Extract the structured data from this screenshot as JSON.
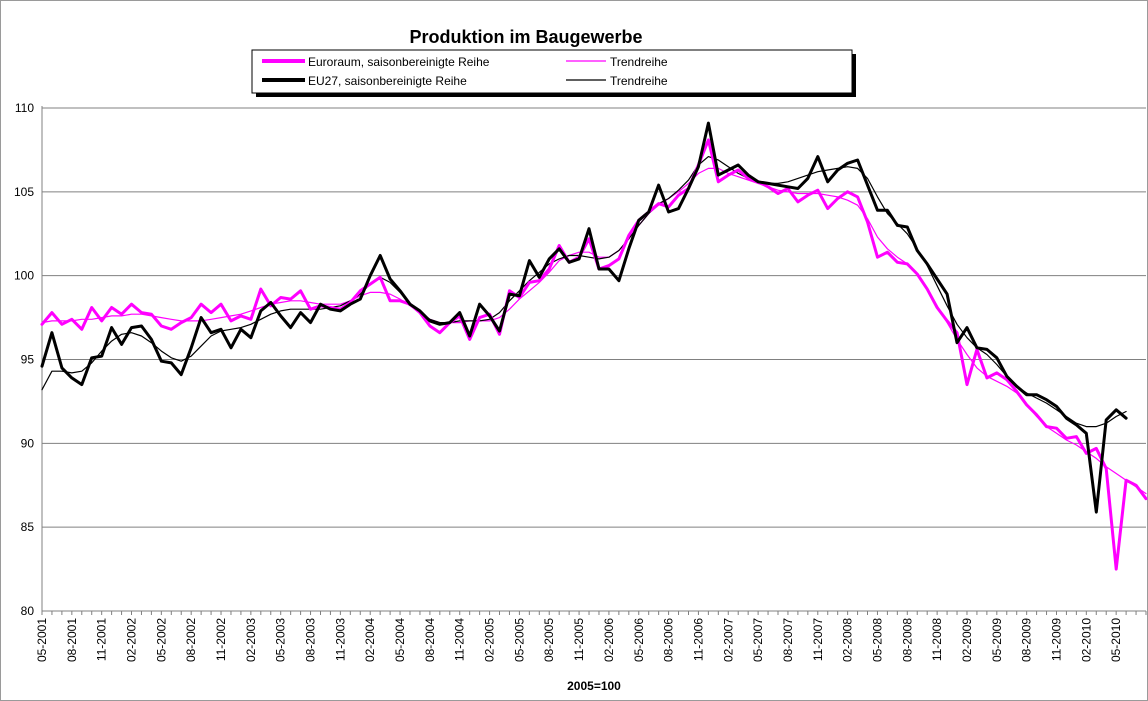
{
  "chart_data": {
    "type": "line",
    "title": "Produktion im Baugewerbe",
    "note": "2005=100",
    "ylim": [
      80,
      110
    ],
    "yticks": [
      80,
      85,
      90,
      95,
      100,
      105,
      110
    ],
    "x_start": "05-2001",
    "x_end": "05-2010",
    "xtick_labels": [
      "05-2001",
      "08-2001",
      "11-2001",
      "02-2002",
      "05-2002",
      "08-2002",
      "11-2002",
      "02-2003",
      "05-2003",
      "08-2003",
      "11-2003",
      "02-2004",
      "05-2004",
      "08-2004",
      "11-2004",
      "02-2005",
      "05-2005",
      "08-2005",
      "11-2005",
      "02-2006",
      "05-2006",
      "08-2006",
      "11-2006",
      "02-2007",
      "05-2007",
      "08-2007",
      "11-2007",
      "02-2008",
      "05-2008",
      "08-2008",
      "11-2008",
      "02-2009",
      "05-2009",
      "08-2009",
      "11-2009",
      "02-2010",
      "05-2010"
    ],
    "grid": "horizontal",
    "legend_position": "top-center",
    "colors": {
      "euro": "#ff00ff",
      "eu27": "#000000"
    },
    "series": [
      {
        "name": "Euroraum, saisonbereinigte Reihe",
        "role": "seasonally_adjusted",
        "color": "#ff00ff",
        "values": [
          97.1,
          97.8,
          97.1,
          97.4,
          96.8,
          98.1,
          97.3,
          98.1,
          97.7,
          98.3,
          97.8,
          97.7,
          97.0,
          96.8,
          97.2,
          97.5,
          98.3,
          97.8,
          98.3,
          97.3,
          97.6,
          97.4,
          99.2,
          98.2,
          98.7,
          98.6,
          99.1,
          98.0,
          98.2,
          98.1,
          98.0,
          98.4,
          99.1,
          99.5,
          99.9,
          98.5,
          98.5,
          98.3,
          97.8,
          97.0,
          96.6,
          97.2,
          97.6,
          96.2,
          97.5,
          97.7,
          96.5,
          99.1,
          98.7,
          99.6,
          99.7,
          100.4,
          101.8,
          100.8,
          101.1,
          102.2,
          100.4,
          100.6,
          101.0,
          102.4,
          103.3,
          103.8,
          104.3,
          104.1,
          104.8,
          105.2,
          106.6,
          108.1,
          105.6,
          106.0,
          106.3,
          105.8,
          105.6,
          105.3,
          104.9,
          105.2,
          104.4,
          104.8,
          105.1,
          104.0,
          104.6,
          105.0,
          104.7,
          103.2,
          101.1,
          101.4,
          100.8,
          100.7,
          100.1,
          99.2,
          98.1,
          97.3,
          96.6,
          93.5,
          95.6,
          93.9,
          94.2,
          93.8,
          93.1,
          92.3,
          91.7,
          91.0,
          90.9,
          90.3,
          90.4,
          89.4,
          89.7,
          88.5,
          82.5,
          87.8,
          87.5,
          86.7
        ]
      },
      {
        "name": "Trendreihe",
        "role": "trend_euro",
        "color": "#ff00ff",
        "values": [
          97.2,
          97.3,
          97.3,
          97.3,
          97.4,
          97.4,
          97.5,
          97.6,
          97.6,
          97.7,
          97.7,
          97.6,
          97.5,
          97.4,
          97.3,
          97.3,
          97.3,
          97.4,
          97.5,
          97.6,
          97.7,
          97.9,
          98.1,
          98.3,
          98.4,
          98.5,
          98.5,
          98.4,
          98.3,
          98.3,
          98.3,
          98.5,
          98.8,
          99.0,
          99.0,
          98.9,
          98.6,
          98.2,
          97.8,
          97.4,
          97.2,
          97.2,
          97.2,
          97.3,
          97.3,
          97.3,
          97.5,
          98.0,
          98.6,
          99.1,
          99.6,
          100.2,
          100.9,
          101.2,
          101.4,
          101.4,
          101.1,
          101.1,
          101.5,
          102.2,
          103.0,
          103.7,
          104.2,
          104.6,
          105.0,
          105.5,
          106.1,
          106.4,
          106.4,
          106.1,
          105.9,
          105.7,
          105.5,
          105.3,
          105.1,
          105.0,
          104.9,
          104.9,
          104.9,
          104.8,
          104.7,
          104.5,
          104.2,
          103.4,
          102.3,
          101.6,
          101.1,
          100.7,
          100.1,
          99.2,
          98.2,
          97.2,
          96.2,
          95.3,
          94.5,
          94.0,
          93.7,
          93.4,
          93.0,
          92.3,
          91.6,
          91.0,
          90.6,
          90.2,
          89.9,
          89.5,
          89.1,
          88.6,
          88.2,
          87.8,
          87.4,
          87.0
        ]
      },
      {
        "name": "EU27, saisonbereinigte Reihe",
        "role": "seasonally_adjusted",
        "color": "#000000",
        "values": [
          94.6,
          96.6,
          94.5,
          93.9,
          93.5,
          95.1,
          95.2,
          96.9,
          95.9,
          96.9,
          97.0,
          96.2,
          94.9,
          94.8,
          94.1,
          95.7,
          97.5,
          96.6,
          96.8,
          95.7,
          96.8,
          96.3,
          97.9,
          98.4,
          97.6,
          96.9,
          97.8,
          97.2,
          98.3,
          98.0,
          97.9,
          98.3,
          98.6,
          100.0,
          101.2,
          99.8,
          99.1,
          98.3,
          97.9,
          97.3,
          97.1,
          97.2,
          97.8,
          96.4,
          98.3,
          97.6,
          96.7,
          98.9,
          98.8,
          100.9,
          99.9,
          101.0,
          101.6,
          100.8,
          101.0,
          102.8,
          100.4,
          100.4,
          99.7,
          101.6,
          103.3,
          103.8,
          105.4,
          103.8,
          104.0,
          105.2,
          106.5,
          109.1,
          106.0,
          106.3,
          106.6,
          106.0,
          105.6,
          105.5,
          105.4,
          105.3,
          105.2,
          105.8,
          107.1,
          105.6,
          106.3,
          106.7,
          106.9,
          105.4,
          103.9,
          103.9,
          103.0,
          102.9,
          101.5,
          100.7,
          99.8,
          98.9,
          96.0,
          96.9,
          95.7,
          95.6,
          95.1,
          94.0,
          93.4,
          92.9,
          92.9,
          92.6,
          92.2,
          91.5,
          91.1,
          90.6,
          85.9,
          91.4,
          92.0,
          91.5
        ]
      },
      {
        "name": "Trendreihe",
        "role": "trend_eu27",
        "color": "#000000",
        "values": [
          93.2,
          94.3,
          94.3,
          94.2,
          94.3,
          94.8,
          95.5,
          96.1,
          96.5,
          96.6,
          96.4,
          96.0,
          95.5,
          95.1,
          94.9,
          95.2,
          95.8,
          96.4,
          96.7,
          96.8,
          96.9,
          97.1,
          97.4,
          97.7,
          97.9,
          98.0,
          98.0,
          98.0,
          98.0,
          98.1,
          98.2,
          98.5,
          98.9,
          99.5,
          99.9,
          99.6,
          99.0,
          98.3,
          97.8,
          97.4,
          97.2,
          97.2,
          97.3,
          97.3,
          97.3,
          97.4,
          97.8,
          98.5,
          99.1,
          99.7,
          100.2,
          100.7,
          101.0,
          101.2,
          101.2,
          101.1,
          101.0,
          101.1,
          101.5,
          102.2,
          103.0,
          103.7,
          104.3,
          104.6,
          105.1,
          105.7,
          106.6,
          107.1,
          106.9,
          106.5,
          106.1,
          105.8,
          105.6,
          105.5,
          105.5,
          105.6,
          105.8,
          106.0,
          106.2,
          106.3,
          106.4,
          106.5,
          106.4,
          105.8,
          104.7,
          103.7,
          103.1,
          102.5,
          101.6,
          100.6,
          99.4,
          98.2,
          97.1,
          96.3,
          95.7,
          95.3,
          94.7,
          94.0,
          93.4,
          93.0,
          92.7,
          92.4,
          92.0,
          91.6,
          91.2,
          91.0,
          91.0,
          91.2,
          91.6,
          91.9
        ]
      }
    ]
  }
}
